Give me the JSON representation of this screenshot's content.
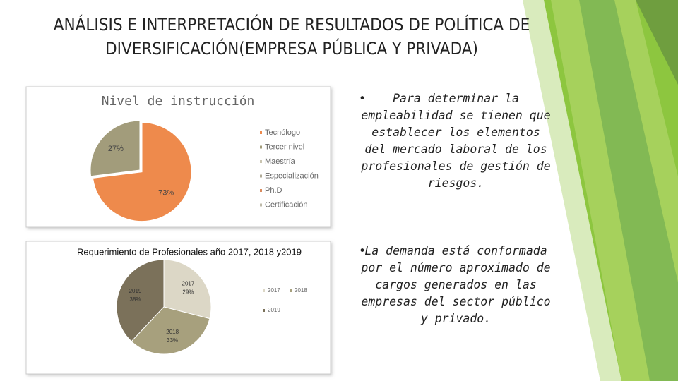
{
  "title": "ANÁLISIS E INTERPRETACIÓN DE RESULTADOS DE POLÍTICA DE DIVERSIFICACIÓN(EMPRESA PÚBLICA Y PRIVADA)",
  "bullets": [
    "Para determinar la empleabilidad se tienen que establecer los elementos del mercado laboral de los profesionales de gestión de riesgos.",
    "La demanda está conformada por el número aproximado de cargos generados en las empresas del sector público y privado."
  ],
  "chart_data": [
    {
      "type": "pie",
      "title": "Nivel de instrucción",
      "categories": [
        "Tecnólogo",
        "Tercer nivel",
        "Maestría",
        "Especialización",
        "Ph.D",
        "Certificación"
      ],
      "values": [
        73,
        27,
        0,
        0,
        0,
        0
      ],
      "value_labels": [
        "73%",
        "27%",
        null,
        null,
        null,
        null
      ],
      "colors": [
        "#ee8a4c",
        "#a29c7b",
        "#c9c4b0",
        "#b0ab98",
        "#d98b5e",
        "#bdb9a8"
      ]
    },
    {
      "type": "pie",
      "title": "Requerimiento de Profesionales año 2017, 2018 y2019",
      "categories": [
        "2017",
        "2018",
        "2019"
      ],
      "values": [
        29,
        33,
        38
      ],
      "value_labels": [
        "29%",
        "33%",
        "38%"
      ],
      "colors": [
        "#dcd7c6",
        "#a7a07d",
        "#7b715a"
      ]
    }
  ]
}
